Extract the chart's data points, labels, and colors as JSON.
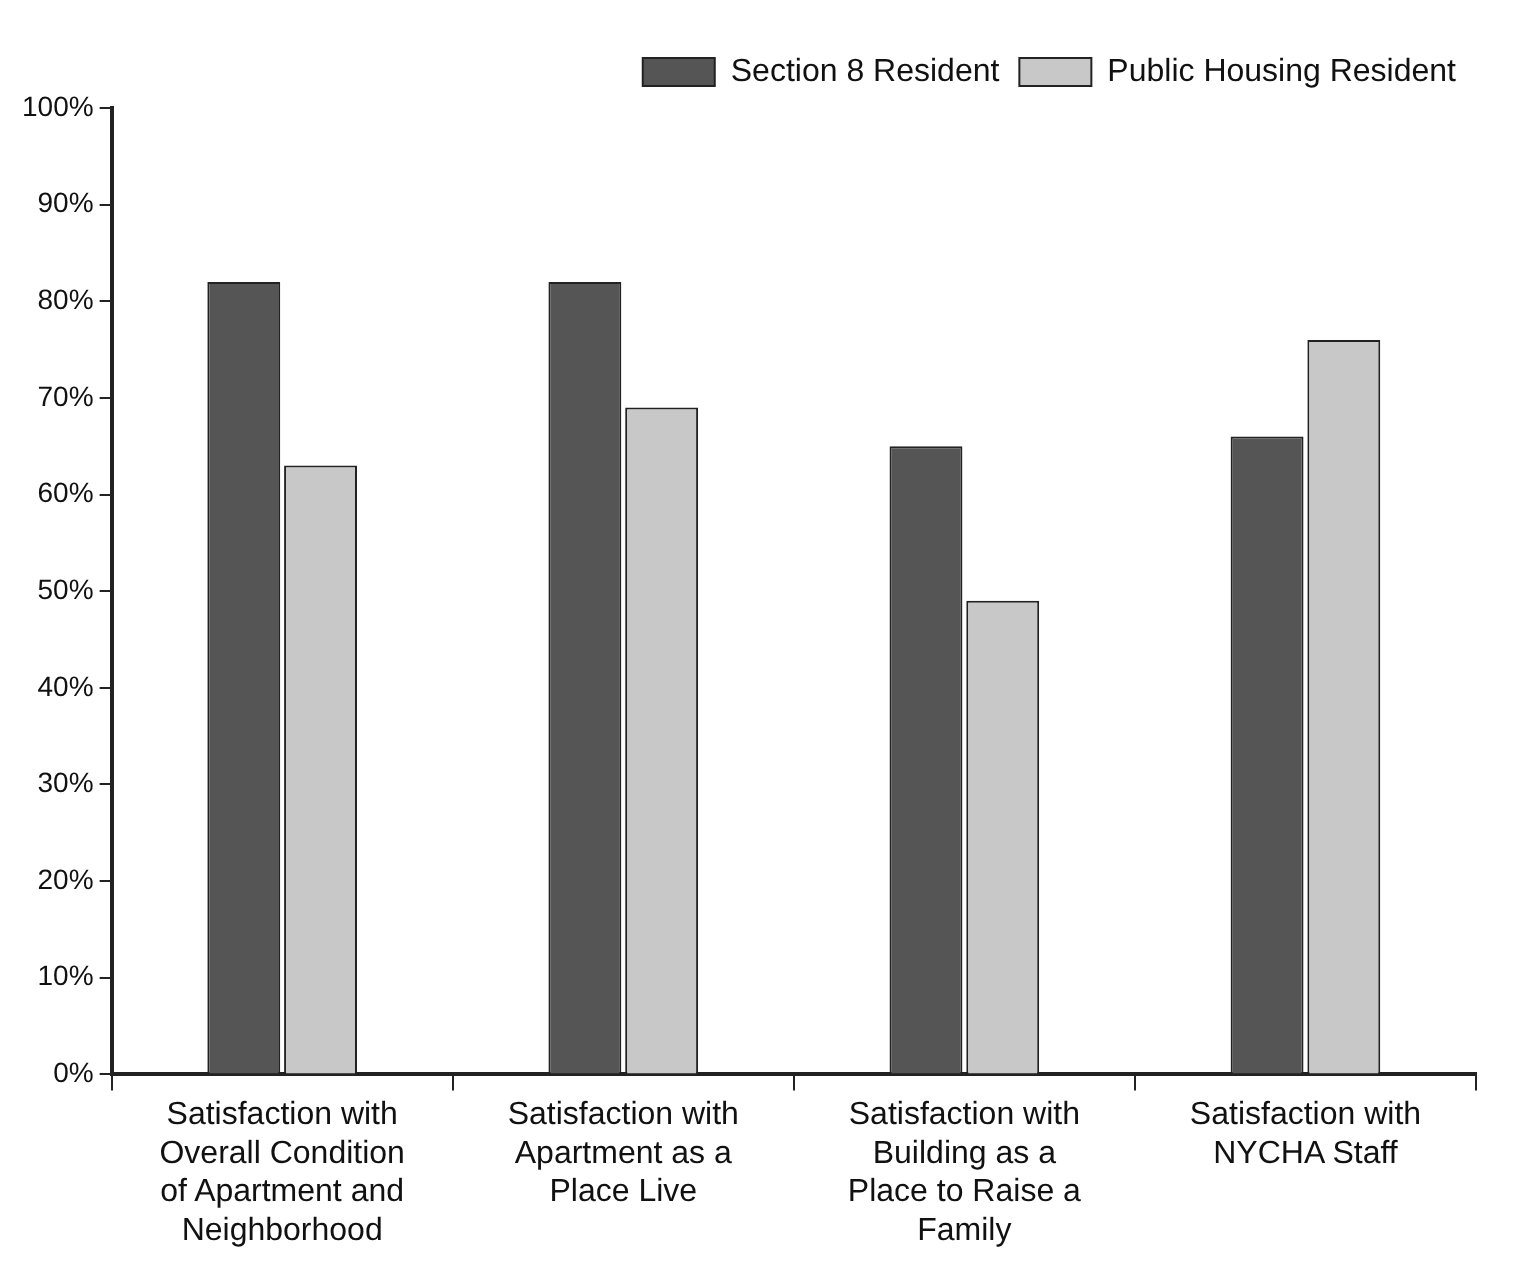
{
  "chart_data": {
    "type": "bar",
    "categories": [
      "Satisfaction with Overall Condition of Apartment and Neighborhood",
      "Satisfaction with Apartment as a Place Live",
      "Satisfaction with Building as a Place to Raise a Family",
      "Satisfaction with NYCHA Staff"
    ],
    "series": [
      {
        "name": "Section 8 Resident",
        "color": "#555555",
        "values": [
          82,
          82,
          65,
          66
        ]
      },
      {
        "name": "Public Housing Resident",
        "color": "#c8c8c8",
        "values": [
          63,
          69,
          49,
          76
        ]
      }
    ],
    "ylim": [
      0,
      100
    ],
    "yticks": [
      {
        "value": 0,
        "label": "0%"
      },
      {
        "value": 10,
        "label": "10%"
      },
      {
        "value": 20,
        "label": "20%"
      },
      {
        "value": 30,
        "label": "30%"
      },
      {
        "value": 40,
        "label": "40%"
      },
      {
        "value": 50,
        "label": "50%"
      },
      {
        "value": 60,
        "label": "60%"
      },
      {
        "value": 70,
        "label": "70%"
      },
      {
        "value": 80,
        "label": "80%"
      },
      {
        "value": 90,
        "label": "90%"
      },
      {
        "value": 100,
        "label": "100%"
      }
    ],
    "grid": false,
    "legend": "top right"
  }
}
